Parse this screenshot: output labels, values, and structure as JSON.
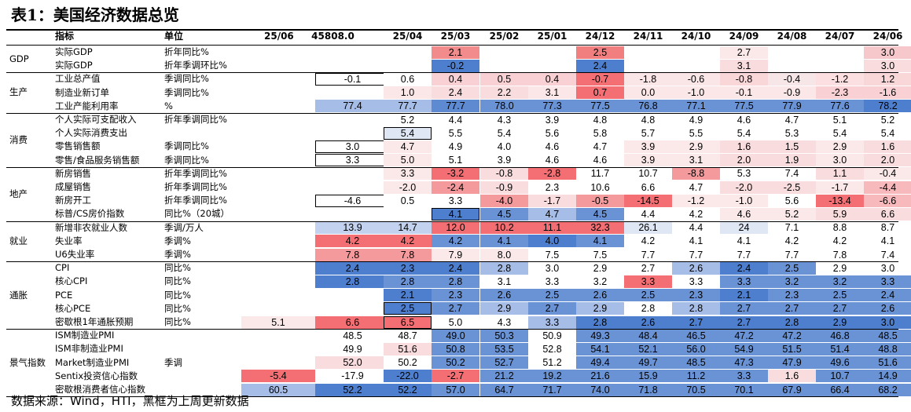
{
  "title": "表1：美国经济数据总览",
  "header": {
    "indicator": "指标",
    "unit": "单位",
    "cols": [
      "25/06",
      "45808.0",
      "25/04",
      "25/03",
      "25/02",
      "25/01",
      "24/12",
      "24/11",
      "24/10",
      "24/09",
      "24/08",
      "24/07",
      "24/06"
    ]
  },
  "groups": [
    {
      "name": "GDP",
      "start": 0,
      "count": 2
    },
    {
      "name": "生产",
      "start": 2,
      "count": 3
    },
    {
      "name": "消费",
      "start": 5,
      "count": 4
    },
    {
      "name": "地产",
      "start": 9,
      "count": 4
    },
    {
      "name": "就业",
      "start": 13,
      "count": 3
    },
    {
      "name": "通胀",
      "start": 16,
      "count": 5
    },
    {
      "name": "景气指数",
      "start": 21,
      "count": 5
    }
  ],
  "rows": [
    {
      "name": "实际GDP",
      "unit": "折年同比%",
      "values": [
        "",
        "",
        "",
        "2.1",
        "",
        "",
        "2.5",
        "",
        "",
        "2.7",
        "",
        "",
        "3.0"
      ],
      "colors": [
        "",
        "",
        "",
        "#f28b8b",
        "",
        "",
        "#f27f7f",
        "",
        "",
        "#fbe9ea",
        "",
        "",
        "#f7c8cb"
      ]
    },
    {
      "name": "实际GDP",
      "unit": "折年季调环比%",
      "values": [
        "",
        "",
        "",
        "-0.2",
        "",
        "",
        "2.4",
        "",
        "",
        "3.1",
        "",
        "",
        "3.0"
      ],
      "colors": [
        "",
        "",
        "",
        "#4d7fce",
        "",
        "",
        "#4d7fce",
        "",
        "",
        "#f9dcdd",
        "",
        "",
        "#f9dcdd"
      ]
    },
    {
      "name": "工业总产值",
      "unit": "季调同比%",
      "values": [
        "",
        "-0.1",
        "0.6",
        "0.4",
        "0.5",
        "0.4",
        "-0.7",
        "-1.8",
        "-0.6",
        "-0.8",
        "-0.4",
        "-1.2",
        "1.2"
      ],
      "colors": [
        "",
        "#ffffff",
        "#ffffff",
        "#f9d0d3",
        "#f9d0d3",
        "#f9d0d3",
        "#f46f73",
        "#fbe6e7",
        "#fbe6e7",
        "#f9d7d9",
        "#f7e6e7",
        "#fbdfe1",
        "#f9d7d9"
      ],
      "boxed": [
        1
      ]
    },
    {
      "name": "制造业新订单",
      "unit": "季调同比%",
      "values": [
        "",
        "",
        "1.0",
        "2.4",
        "2.2",
        "3.1",
        "0.7",
        "0.0",
        "-1.0",
        "-0.1",
        "-0.9",
        "-2.3",
        "-1.6"
      ],
      "colors": [
        "",
        "",
        "#fbe7e8",
        "#f9dcdd",
        "#f9dcdd",
        "#fbe7e8",
        "#f46f73",
        "#fbe7e8",
        "#fbe7e8",
        "#fbe7e8",
        "#fbe7e8",
        "#f9d0d3",
        "#f9d0d3"
      ]
    },
    {
      "name": "工业产能利用率",
      "unit": "%",
      "values": [
        "",
        "77.4",
        "77.7",
        "77.7",
        "78.0",
        "77.3",
        "77.5",
        "76.8",
        "77.1",
        "77.5",
        "77.9",
        "77.6",
        "78.2"
      ],
      "colors": [
        "",
        "#a6bde8",
        "#a6bde8",
        "#5e8ad2",
        "#6a93d6",
        "#6a93d6",
        "#6a93d6",
        "#6a93d6",
        "#6a93d6",
        "#6a93d6",
        "#6a93d6",
        "#6a93d6",
        "#4d7fce"
      ]
    },
    {
      "name": "个人实际可支配收入",
      "unit": "折年季调同比%",
      "values": [
        "",
        "",
        "5.2",
        "4.4",
        "4.3",
        "3.9",
        "4.8",
        "4.8",
        "4.9",
        "4.6",
        "4.7",
        "5.1",
        "5.2"
      ],
      "colors": [
        "",
        "",
        "#ffffff",
        "#ffffff",
        "#ffffff",
        "#ffffff",
        "#ffffff",
        "#ffffff",
        "#ffffff",
        "#ffffff",
        "#ffffff",
        "#ffffff",
        "#ffffff"
      ]
    },
    {
      "name": "个人实际消费支出",
      "unit": "",
      "values": [
        "",
        "",
        "5.4",
        "5.5",
        "5.4",
        "5.6",
        "5.8",
        "5.7",
        "5.5",
        "5.4",
        "5.3",
        "5.4",
        "5.4"
      ],
      "colors": [
        "",
        "",
        "#dfe6f4",
        "#ffffff",
        "#ffffff",
        "#ffffff",
        "#ffffff",
        "#ffffff",
        "#ffffff",
        "#ffffff",
        "#ffffff",
        "#ffffff",
        "#ffffff"
      ],
      "boxed": [
        2
      ]
    },
    {
      "name": "零售销售额",
      "unit": "季调同比%",
      "values": [
        "",
        "3.0",
        "4.7",
        "4.9",
        "4.0",
        "4.6",
        "4.7",
        "3.9",
        "2.9",
        "1.6",
        "1.5",
        "2.9",
        "1.6"
      ],
      "colors": [
        "",
        "#ffffff",
        "#fbe9ea",
        "#ffffff",
        "#ffffff",
        "#ffffff",
        "#ffffff",
        "#fbe9ea",
        "#fbe9ea",
        "#f9dcdd",
        "#f9dcdd",
        "#fbe9ea",
        "#f9dcdd"
      ],
      "boxed": [
        1
      ]
    },
    {
      "name": "零售/食品服务销售额",
      "unit": "季调同比%",
      "values": [
        "",
        "3.3",
        "5.0",
        "5.1",
        "3.9",
        "4.6",
        "4.6",
        "3.9",
        "3.1",
        "2.0",
        "1.9",
        "3.0",
        "2.0"
      ],
      "colors": [
        "",
        "#ffffff",
        "#fbe9ea",
        "#ffffff",
        "#ffffff",
        "#ffffff",
        "#ffffff",
        "#fbe9ea",
        "#fbe9ea",
        "#f9dcdd",
        "#f9dcdd",
        "#fbe9ea",
        "#f9dcdd"
      ],
      "boxed": [
        1
      ]
    },
    {
      "name": "新房销售",
      "unit": "折年季调同比%",
      "values": [
        "",
        "",
        "3.3",
        "-3.2",
        "-0.8",
        "-2.8",
        "11.7",
        "10.7",
        "-8.8",
        "5.3",
        "7.4",
        "1.1",
        "-0.4"
      ],
      "colors": [
        "",
        "",
        "#fbe9ea",
        "#f46f73",
        "#f9dcdd",
        "#f46f73",
        "#ffffff",
        "#ffffff",
        "#f49a9d",
        "#ffffff",
        "#ffffff",
        "#f9dcdd",
        "#fbe9ea"
      ]
    },
    {
      "name": "成屋销售",
      "unit": "折年季调同比%",
      "values": [
        "",
        "",
        "-2.0",
        "-2.4",
        "-0.9",
        "2.3",
        "10.6",
        "6.6",
        "4.7",
        "-2.0",
        "-2.5",
        "-1.7",
        "-4.4"
      ],
      "colors": [
        "",
        "",
        "#fbe9ea",
        "#f49a9d",
        "#f9dcdd",
        "#ffffff",
        "#ffffff",
        "#ffffff",
        "#ffffff",
        "#f9dcdd",
        "#f9dcdd",
        "#fbe9ea",
        "#f7b9bc"
      ]
    },
    {
      "name": "新房开工",
      "unit": "折年季调同比%",
      "values": [
        "",
        "-4.6",
        "0.5",
        "3.3",
        "-4.0",
        "-1.7",
        "-0.5",
        "-14.5",
        "-1.2",
        "-1.0",
        "5.6",
        "-13.4",
        "-6.6"
      ],
      "colors": [
        "",
        "#ffffff",
        "#ffffff",
        "#ffffff",
        "#f49a9d",
        "#f9dcdd",
        "#f49a9d",
        "#f46f73",
        "#fbe9ea",
        "#fbe9ea",
        "#ffffff",
        "#f46f73",
        "#f7b9bc"
      ],
      "boxed": [
        1
      ]
    },
    {
      "name": "标普/CS房价指数",
      "unit": "同比%（20城）",
      "values": [
        "",
        "",
        "",
        "4.1",
        "4.5",
        "4.7",
        "4.5",
        "4.4",
        "4.2",
        "4.6",
        "5.2",
        "5.9",
        "6.6"
      ],
      "colors": [
        "",
        "",
        "",
        "#4d7fce",
        "#6a93d6",
        "#a6bde8",
        "#6a93d6",
        "#ffffff",
        "#ffffff",
        "#fbe9ea",
        "#fbe9ea",
        "#f9dcdd",
        "#f9dcdd"
      ],
      "boxed": [
        3
      ]
    },
    {
      "name": "新增非农就业人数",
      "unit": "季调/万人",
      "values": [
        "",
        "13.9",
        "14.7",
        "12.0",
        "10.2",
        "11.1",
        "32.3",
        "26.1",
        "4.4",
        "24",
        "7.1",
        "8.8",
        "8.7"
      ],
      "colors": [
        "",
        "#c3d2ee",
        "#c3d2ee",
        "#f46f73",
        "#f46f73",
        "#f46f73",
        "#f46f73",
        "#dfe6f4",
        "#ffffff",
        "#dfe6f4",
        "#ffffff",
        "#ffffff",
        "#ffffff"
      ]
    },
    {
      "name": "失业率",
      "unit": "季调%",
      "values": [
        "",
        "4.2",
        "4.2",
        "4.2",
        "4.1",
        "4.0",
        "4.1",
        "4.2",
        "4.1",
        "4.1",
        "4.2",
        "4.2",
        "4.1"
      ],
      "colors": [
        "",
        "#f46f73",
        "#f46f73",
        "#6a93d6",
        "#6a93d6",
        "#4d7fce",
        "#6a93d6",
        "#ffffff",
        "#ffffff",
        "#ffffff",
        "#ffffff",
        "#ffffff",
        "#ffffff"
      ]
    },
    {
      "name": "U6失业率",
      "unit": "季调%",
      "values": [
        "",
        "7.8",
        "7.8",
        "7.9",
        "8.0",
        "7.5",
        "7.5",
        "7.7",
        "7.7",
        "7.7",
        "7.7",
        "7.8",
        "7.4"
      ],
      "colors": [
        "",
        "#f49a9d",
        "#f49a9d",
        "#fbe9ea",
        "#fbe9ea",
        "#ffffff",
        "#ffffff",
        "#ffffff",
        "#ffffff",
        "#ffffff",
        "#ffffff",
        "#ffffff",
        "#ffffff"
      ]
    },
    {
      "name": "CPI",
      "unit": "同比%",
      "values": [
        "",
        "2.4",
        "2.3",
        "2.4",
        "2.8",
        "3.0",
        "2.9",
        "2.7",
        "2.6",
        "2.4",
        "2.5",
        "2.9",
        "3.0"
      ],
      "colors": [
        "",
        "#4d7fce",
        "#4d7fce",
        "#4d7fce",
        "#a6bde8",
        "#ffffff",
        "#ffffff",
        "#ffffff",
        "#a6bde8",
        "#4d7fce",
        "#6a93d6",
        "#ffffff",
        "#ffffff"
      ]
    },
    {
      "name": "核心CPI",
      "unit": "同比%",
      "values": [
        "",
        "2.8",
        "2.8",
        "2.8",
        "3.1",
        "3.3",
        "3.2",
        "3.3",
        "3.3",
        "3.3",
        "3.2",
        "3.2",
        "3.3"
      ],
      "colors": [
        "",
        "#4d7fce",
        "#6a93d6",
        "#6a93d6",
        "#ffffff",
        "#ffffff",
        "#ffffff",
        "#f46f73",
        "#ffffff",
        "#6a93d6",
        "#6a93d6",
        "#6a93d6",
        "#6a93d6"
      ]
    },
    {
      "name": "PCE",
      "unit": "同比%",
      "values": [
        "",
        "",
        "2.1",
        "2.3",
        "2.6",
        "2.5",
        "2.6",
        "2.5",
        "2.3",
        "2.1",
        "2.3",
        "2.5",
        "2.4"
      ],
      "colors": [
        "",
        "",
        "#4d7fce",
        "#6a93d6",
        "#6a93d6",
        "#6a93d6",
        "#6a93d6",
        "#6a93d6",
        "#6a93d6",
        "#4d7fce",
        "#6a93d6",
        "#6a93d6",
        "#6a93d6"
      ]
    },
    {
      "name": "核心PCE",
      "unit": "同比%",
      "values": [
        "",
        "",
        "2.5",
        "2.7",
        "2.9",
        "2.7",
        "2.9",
        "2.8",
        "2.8",
        "2.7",
        "2.7",
        "2.7",
        "2.6"
      ],
      "colors": [
        "",
        "",
        "#4d7fce",
        "#6a93d6",
        "#a6bde8",
        "#6a93d6",
        "#a6bde8",
        "#ffffff",
        "#a6bde8",
        "#6a93d6",
        "#6a93d6",
        "#6a93d6",
        "#6a93d6"
      ],
      "boxed": [
        2
      ]
    },
    {
      "name": "密歇根1年通胀预期",
      "unit": "同比%",
      "values": [
        "5.1",
        "6.6",
        "6.5",
        "5.0",
        "4.3",
        "3.3",
        "2.8",
        "2.6",
        "2.7",
        "2.7",
        "2.8",
        "2.9",
        "3.0"
      ],
      "colors": [
        "#fbe9ea",
        "#f46f73",
        "#f46f73",
        "#ffffff",
        "#ffffff",
        "#a6bde8",
        "#4d7fce",
        "#4d7fce",
        "#4d7fce",
        "#4d7fce",
        "#4d7fce",
        "#4d7fce",
        "#4d7fce"
      ],
      "boxed": [
        2
      ]
    },
    {
      "name": "ISM制造业PMI",
      "unit": "",
      "values": [
        "",
        "48.5",
        "48.7",
        "49.0",
        "50.3",
        "50.9",
        "49.3",
        "48.4",
        "46.5",
        "47.2",
        "47.2",
        "46.8",
        "48.5"
      ],
      "colors": [
        "",
        "#ffffff",
        "#ffffff",
        "#6a93d6",
        "#6a93d6",
        "#ffffff",
        "#6a93d6",
        "#6a93d6",
        "#6a93d6",
        "#6a93d6",
        "#6a93d6",
        "#6a93d6",
        "#6a93d6"
      ]
    },
    {
      "name": "ISM非制造业PMI",
      "unit": "",
      "values": [
        "",
        "49.9",
        "51.6",
        "50.8",
        "53.5",
        "52.8",
        "54.1",
        "52.1",
        "56.0",
        "54.9",
        "51.5",
        "51.4",
        "48.8"
      ],
      "colors": [
        "",
        "#ffffff",
        "#f9dcdd",
        "#6a93d6",
        "#6a93d6",
        "#ffffff",
        "#6a93d6",
        "#6a93d6",
        "#6a93d6",
        "#6a93d6",
        "#6a93d6",
        "#6a93d6",
        "#6a93d6"
      ]
    },
    {
      "name": "Market制造业PMI",
      "unit": "季调",
      "values": [
        "",
        "52.0",
        "50.2",
        "50.2",
        "52.7",
        "51.2",
        "49.4",
        "49.7",
        "48.5",
        "47.3",
        "47.9",
        "49.6",
        "51.6"
      ],
      "colors": [
        "",
        "#f9dcdd",
        "#ffffff",
        "#6a93d6",
        "#6a93d6",
        "#ffffff",
        "#6a93d6",
        "#6a93d6",
        "#6a93d6",
        "#6a93d6",
        "#6a93d6",
        "#6a93d6",
        "#6a93d6"
      ]
    },
    {
      "name": "Sentix投资信心指数",
      "unit": "",
      "values": [
        "-5.4",
        "-17.9",
        "-22.0",
        "-2.7",
        "21.2",
        "19.2",
        "21.6",
        "15.9",
        "11.2",
        "3.3",
        "1.6",
        "10.7",
        "14.9"
      ],
      "colors": [
        "#f46f73",
        "#ffffff",
        "#4d7fce",
        "#f46f73",
        "#6a93d6",
        "#6a93d6",
        "#6a93d6",
        "#6a93d6",
        "#6a93d6",
        "#6a93d6",
        "#f9dcdd",
        "#6a93d6",
        "#6a93d6"
      ]
    },
    {
      "name": "密歇根消费者信心指数",
      "unit": "",
      "values": [
        "60.5",
        "52.2",
        "52.2",
        "57.0",
        "64.7",
        "71.7",
        "74.0",
        "71.8",
        "70.5",
        "70.1",
        "67.9",
        "66.4",
        "68.2"
      ],
      "colors": [
        "#a6bde8",
        "#4d7fce",
        "#4d7fce",
        "#6a93d6",
        "#6a93d6",
        "#6a93d6",
        "#6a93d6",
        "#6a93d6",
        "#6a93d6",
        "#6a93d6",
        "#6a93d6",
        "#6a93d6",
        "#6a93d6"
      ]
    }
  ],
  "source": "数据来源：Wind，HTI，黑框为上周更新数据"
}
